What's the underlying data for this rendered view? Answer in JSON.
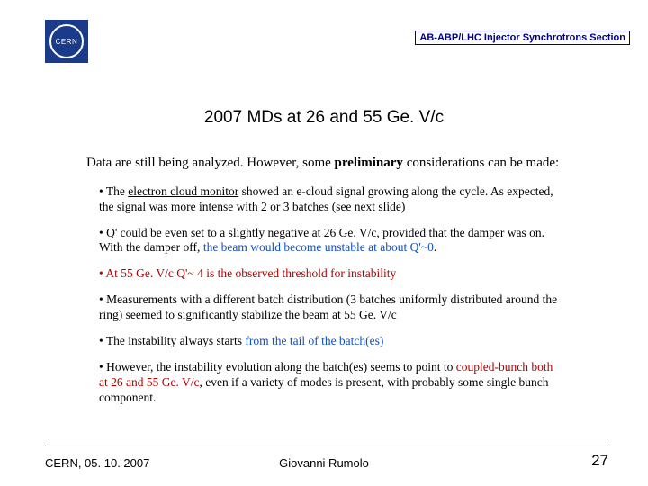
{
  "header": {
    "logo_text": "CERN",
    "section_label": "AB-ABP/LHC Injector Synchrotrons Section"
  },
  "title": "2007 MDs at 26 and 55 Ge. V/c",
  "intro": {
    "pre": "Data are still being analyzed. However, some ",
    "bold": "preliminary",
    "post": " considerations can be made:"
  },
  "bullets": {
    "b1": {
      "pre": "• The ",
      "u": "electron cloud monitor",
      "post": " showed an e-cloud signal growing along the cycle. As expected, the signal was more intense with 2 or 3 batches (see next slide)"
    },
    "b2": {
      "pre": "• Q' could be even set to a slightly negative at 26 Ge. V/c, provided that the damper was on. With the damper off, ",
      "blue": "the beam would become unstable at about Q'~0",
      "post": "."
    },
    "b3": "• At 55 Ge. V/c Q'~ 4 is the observed threshold for instability",
    "b4": "• Measurements with a different batch distribution (3 batches uniformly distributed around the ring) seemed to significantly stabilize the beam at 55 Ge. V/c",
    "b5": {
      "pre": "• The instability always starts ",
      "blue": "from the tail of the batch(es)"
    },
    "b6": {
      "pre": "• However, the instability evolution along the batch(es) seems to point to ",
      "red": "coupled-bunch both at 26 and 55 Ge. V/c",
      "post": ", even if a variety of modes is present, with probably some single bunch component."
    }
  },
  "footer": {
    "left": "CERN, 05. 10. 2007",
    "center": "Giovanni Rumolo",
    "page": "27"
  },
  "colors": {
    "section_border": "#000088",
    "section_text": "#000088",
    "red": "#b00000",
    "blue": "#1050c0",
    "logo_bg": "#1a3a8a"
  }
}
